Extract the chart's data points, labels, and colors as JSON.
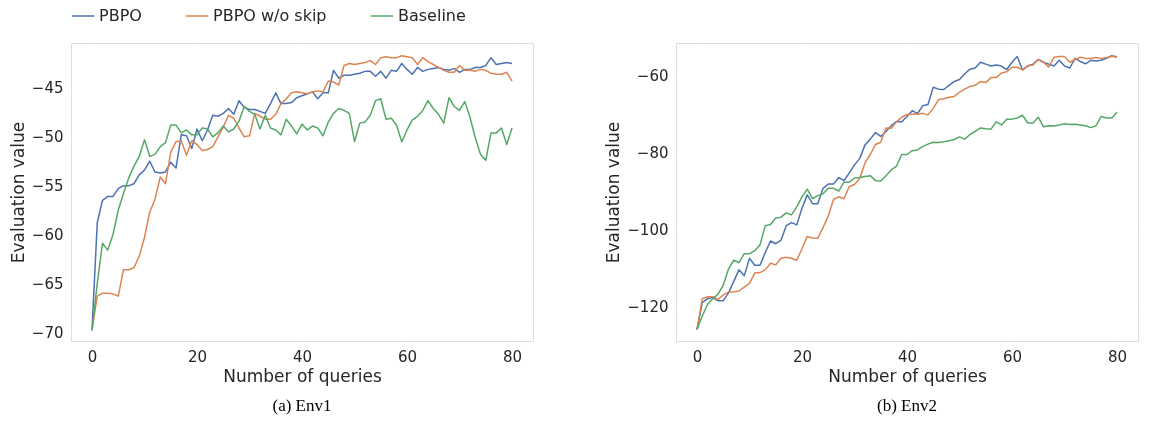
{
  "chart_data": [
    {
      "type": "line",
      "title": "(a) Env1",
      "xlabel": "Number of queries",
      "ylabel": "Evaluation value",
      "xlim": [
        -4,
        84
      ],
      "ylim": [
        -70.9,
        -40.4
      ],
      "xticks": [
        0,
        20,
        40,
        60,
        80
      ],
      "yticks": [
        -70,
        -65,
        -60,
        -55,
        -50,
        -45
      ],
      "grid": true,
      "legend": "top",
      "marker": "none",
      "line_style": "solid",
      "x": [
        0,
        1,
        2,
        3,
        4,
        5,
        6,
        7,
        8,
        9,
        10,
        11,
        12,
        13,
        14,
        15,
        16,
        17,
        18,
        19,
        20,
        21,
        22,
        23,
        24,
        25,
        26,
        27,
        28,
        29,
        30,
        31,
        32,
        33,
        34,
        35,
        36,
        37,
        38,
        39,
        40,
        41,
        42,
        43,
        44,
        45,
        46,
        47,
        48,
        49,
        50,
        51,
        52,
        53,
        54,
        55,
        56,
        57,
        58,
        59,
        60,
        61,
        62,
        63,
        64,
        65,
        66,
        67,
        68,
        69,
        70,
        71,
        72,
        73,
        74,
        75,
        76,
        77,
        78,
        79,
        80
      ],
      "series": [
        {
          "name": "PBPO",
          "color": "#4c72b0",
          "values": [
            -69.8,
            -58.8,
            -56.5,
            -56.1,
            -56.1,
            -55.3,
            -55,
            -55,
            -54.8,
            -53.9,
            -53.4,
            -52.5,
            -53.6,
            -53.7,
            -53.6,
            -52.6,
            -53.2,
            -49.8,
            -49.9,
            -51.2,
            -49.2,
            -50.4,
            -49.3,
            -47.8,
            -47.9,
            -47.6,
            -47.1,
            -47.7,
            -46.3,
            -47,
            -47.2,
            -47.2,
            -47.4,
            -47.6,
            -46.6,
            -45.5,
            -46.6,
            -46.6,
            -46.5,
            -46,
            -45.8,
            -45.6,
            -45.4,
            -46.1,
            -45.5,
            -45.5,
            -43.2,
            -44,
            -43.7,
            -43.7,
            -43.6,
            -43.5,
            -43.3,
            -43.3,
            -43.8,
            -43.3,
            -44,
            -43.2,
            -43.3,
            -42.5,
            -43.1,
            -43.6,
            -42.9,
            -43.3,
            -43.1,
            -43,
            -42.9,
            -43.1,
            -43.2,
            -43,
            -43.4,
            -43.1,
            -43.1,
            -42.9,
            -42.9,
            -42.7,
            -41.9,
            -42.6,
            -42.5,
            -42.4,
            -42.5
          ]
        },
        {
          "name": "PBPO w/o skip",
          "color": "#dd8452",
          "values": [
            -69.8,
            -66.3,
            -66,
            -66,
            -66.1,
            -66.3,
            -63.6,
            -63.6,
            -63.4,
            -62.2,
            -60.3,
            -57.7,
            -56.4,
            -54.1,
            -54.8,
            -51.6,
            -50.5,
            -50.4,
            -51.9,
            -50.4,
            -50.8,
            -51.4,
            -51.3,
            -51,
            -50,
            -49,
            -47.8,
            -48.1,
            -49.1,
            -50,
            -49.9,
            -47.6,
            -47.9,
            -48.2,
            -48.2,
            -47.7,
            -46.6,
            -46.1,
            -45.5,
            -45.4,
            -45.5,
            -45.6,
            -45.4,
            -45.3,
            -45.4,
            -44.3,
            -44.4,
            -44.7,
            -42.7,
            -42.5,
            -42.6,
            -42.5,
            -42.4,
            -42.2,
            -42.6,
            -41.9,
            -41.8,
            -41.9,
            -41.9,
            -41.7,
            -41.8,
            -41.9,
            -42.6,
            -41.9,
            -42.3,
            -42.6,
            -42.9,
            -43.2,
            -43.4,
            -43.4,
            -42.7,
            -43.2,
            -43.2,
            -43.3,
            -43.1,
            -43.2,
            -43.5,
            -43.6,
            -43.6,
            -43.4,
            -44.3
          ]
        },
        {
          "name": "Baseline",
          "color": "#55a868",
          "values": [
            -69.8,
            -65,
            -60.9,
            -61.6,
            -60,
            -57.5,
            -55.8,
            -54.2,
            -53,
            -52,
            -50.3,
            -52,
            -51.8,
            -51,
            -50.6,
            -48.8,
            -48.8,
            -49.6,
            -49.3,
            -49.8,
            -49.8,
            -49.1,
            -49.2,
            -50,
            -49.6,
            -48.9,
            -49.5,
            -49.2,
            -48.4,
            -46.9,
            -47.4,
            -47.7,
            -49.2,
            -47.8,
            -49.1,
            -49.3,
            -49.8,
            -48.2,
            -48.9,
            -49.7,
            -48.7,
            -49.3,
            -48.9,
            -49.1,
            -49.9,
            -48.5,
            -47.6,
            -47.1,
            -47.3,
            -47.6,
            -50.5,
            -48.6,
            -48.5,
            -47.8,
            -46.3,
            -46.1,
            -48.2,
            -48.1,
            -48.8,
            -50.5,
            -49.3,
            -48.3,
            -47.9,
            -47.3,
            -46.3,
            -47.1,
            -47.7,
            -48.6,
            -46,
            -46.9,
            -47.3,
            -46.4,
            -48,
            -50.1,
            -51.8,
            -52.4,
            -49.6,
            -49.6,
            -49.1,
            -50.8,
            -49.1
          ]
        }
      ]
    },
    {
      "type": "line",
      "title": "(b) Env2",
      "xlabel": "Number of queries",
      "ylabel": "Evaluation value",
      "xlim": [
        -4,
        84
      ],
      "ylim": [
        -129,
        -51.5
      ],
      "xticks": [
        0,
        20,
        40,
        60,
        80
      ],
      "yticks": [
        -120,
        -100,
        -80,
        -60
      ],
      "grid": true,
      "legend": "top",
      "marker": "none",
      "line_style": "solid",
      "x": [
        0,
        1,
        2,
        3,
        4,
        5,
        6,
        7,
        8,
        9,
        10,
        11,
        12,
        13,
        14,
        15,
        16,
        17,
        18,
        19,
        20,
        21,
        22,
        23,
        24,
        25,
        26,
        27,
        28,
        29,
        30,
        31,
        32,
        33,
        34,
        35,
        36,
        37,
        38,
        39,
        40,
        41,
        42,
        43,
        44,
        45,
        46,
        47,
        48,
        49,
        50,
        51,
        52,
        53,
        54,
        55,
        56,
        57,
        58,
        59,
        60,
        61,
        62,
        63,
        64,
        65,
        66,
        67,
        68,
        69,
        70,
        71,
        72,
        73,
        74,
        75,
        76,
        77,
        78,
        79,
        80
      ],
      "series": [
        {
          "name": "PBPO",
          "color": "#4c72b0",
          "values": [
            -126,
            -119,
            -118,
            -117.7,
            -118.5,
            -118.5,
            -116.5,
            -113.5,
            -110.5,
            -112,
            -107.5,
            -109.3,
            -109.3,
            -106,
            -103,
            -103.7,
            -102.8,
            -99,
            -98.2,
            -98.8,
            -94.5,
            -91,
            -93.3,
            -93.3,
            -89.3,
            -88.2,
            -88.2,
            -86.5,
            -87.3,
            -85.3,
            -83.2,
            -81.5,
            -78,
            -76.5,
            -74.8,
            -75.8,
            -74.5,
            -73,
            -71.9,
            -72,
            -70.6,
            -69.1,
            -69.9,
            -67.8,
            -67.5,
            -63,
            -63.5,
            -63.6,
            -62.5,
            -61.5,
            -61,
            -59.5,
            -58.3,
            -58,
            -56.5,
            -57,
            -57.5,
            -57.2,
            -57.5,
            -58.4,
            -56.5,
            -55,
            -58.5,
            -57.5,
            -57,
            -55.8,
            -56.5,
            -57,
            -57.5,
            -56,
            -57.5,
            -58,
            -55.5,
            -56.3,
            -56.9,
            -56,
            -56.2,
            -56,
            -55.5,
            -54.8,
            -55.2
          ]
        },
        {
          "name": "PBPO w/o skip",
          "color": "#dd8452",
          "values": [
            -126,
            -118,
            -117.5,
            -117.5,
            -118.2,
            -117,
            -116.3,
            -116.2,
            -116,
            -115,
            -114,
            -111.3,
            -111.2,
            -110.5,
            -108.8,
            -109.2,
            -107.5,
            -107.2,
            -107.5,
            -108,
            -105,
            -101.8,
            -102.2,
            -102.3,
            -99.5,
            -96.5,
            -92.2,
            -91.5,
            -92,
            -88.8,
            -88.3,
            -86.7,
            -82.7,
            -80.5,
            -77.9,
            -77.3,
            -73.6,
            -73.7,
            -72,
            -70.8,
            -70.1,
            -70,
            -70,
            -69.8,
            -70.2,
            -68.5,
            -66.2,
            -66,
            -65.6,
            -65.4,
            -64.3,
            -63.5,
            -62.8,
            -62.5,
            -61.5,
            -61.8,
            -60.5,
            -60.5,
            -59.3,
            -59,
            -57.8,
            -57.8,
            -58.5,
            -57.4,
            -57.2,
            -55.8,
            -56.5,
            -57.7,
            -55.2,
            -55,
            -55,
            -56.5,
            -55.8,
            -55.2,
            -55.5,
            -55.5,
            -55.3,
            -55.5,
            -55.3,
            -55,
            -55
          ]
        },
        {
          "name": "Baseline",
          "color": "#55a868",
          "values": [
            -126,
            -122.5,
            -119.5,
            -118,
            -116.8,
            -114.5,
            -110.3,
            -108,
            -108.6,
            -106.3,
            -106.3,
            -105.5,
            -104,
            -99,
            -98.7,
            -97,
            -96.8,
            -95.7,
            -96.2,
            -94.1,
            -91.5,
            -89.5,
            -92,
            -91.2,
            -90.7,
            -89.3,
            -89.3,
            -90,
            -87.7,
            -87.7,
            -86.6,
            -86.5,
            -86.2,
            -86,
            -87.3,
            -87.4,
            -86,
            -84.5,
            -83.5,
            -80.5,
            -80.5,
            -79.5,
            -79.3,
            -78.4,
            -77.8,
            -77.3,
            -77.4,
            -77.2,
            -76.9,
            -76.6,
            -75.9,
            -76.5,
            -75.3,
            -74.5,
            -73.6,
            -73.8,
            -73.9,
            -72,
            -72.8,
            -71.3,
            -71.3,
            -71,
            -70.3,
            -72.3,
            -72.3,
            -70.8,
            -73.3,
            -73,
            -73.1,
            -72.8,
            -72.5,
            -72.7,
            -72.6,
            -72.8,
            -73,
            -73.5,
            -73,
            -70.6,
            -71,
            -71,
            -69.5
          ]
        }
      ]
    }
  ]
}
